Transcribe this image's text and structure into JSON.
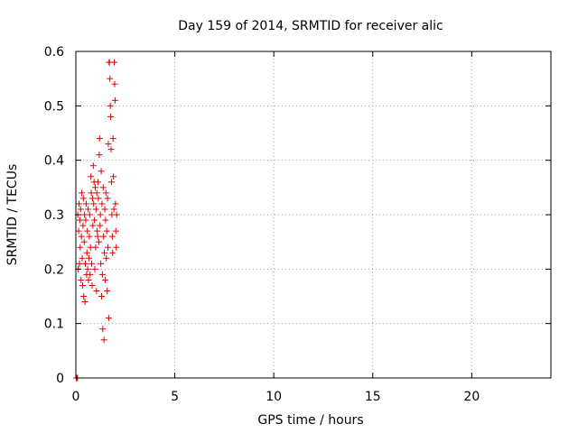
{
  "chart_data": {
    "type": "scatter",
    "title": "Day 159 of 2014, SRMTID for receiver alic",
    "xlabel": "GPS time / hours",
    "ylabel": "SRMTID / TECUs",
    "xlim": [
      0,
      24
    ],
    "ylim": [
      0,
      0.6
    ],
    "x_ticks": [
      0,
      5,
      10,
      15,
      20
    ],
    "y_ticks": [
      0,
      0.1,
      0.2,
      0.3,
      0.4,
      0.5,
      0.6
    ],
    "grid": true,
    "marker": "+",
    "marker_color": "#dd0000",
    "series": [
      {
        "points": [
          [
            0.02,
            0.0
          ],
          [
            0.05,
            0.0
          ],
          [
            0.08,
            0.0
          ],
          [
            0.1,
            0.3
          ],
          [
            0.12,
            0.2
          ],
          [
            0.14,
            0.27
          ],
          [
            0.16,
            0.32
          ],
          [
            0.18,
            0.21
          ],
          [
            0.2,
            0.29
          ],
          [
            0.22,
            0.24
          ],
          [
            0.24,
            0.31
          ],
          [
            0.26,
            0.18
          ],
          [
            0.28,
            0.26
          ],
          [
            0.3,
            0.34
          ],
          [
            0.32,
            0.22
          ],
          [
            0.34,
            0.17
          ],
          [
            0.36,
            0.28
          ],
          [
            0.38,
            0.33
          ],
          [
            0.4,
            0.15
          ],
          [
            0.42,
            0.25
          ],
          [
            0.44,
            0.3
          ],
          [
            0.46,
            0.14
          ],
          [
            0.48,
            0.21
          ],
          [
            0.5,
            0.29
          ],
          [
            0.52,
            0.32
          ],
          [
            0.54,
            0.19
          ],
          [
            0.56,
            0.23
          ],
          [
            0.58,
            0.27
          ],
          [
            0.6,
            0.2
          ],
          [
            0.62,
            0.31
          ],
          [
            0.64,
            0.18
          ],
          [
            0.66,
            0.22
          ],
          [
            0.68,
            0.26
          ],
          [
            0.7,
            0.3
          ],
          [
            0.72,
            0.19
          ],
          [
            0.74,
            0.24
          ],
          [
            0.76,
            0.37
          ],
          [
            0.78,
            0.34
          ],
          [
            0.8,
            0.21
          ],
          [
            0.82,
            0.17
          ],
          [
            0.84,
            0.33
          ],
          [
            0.86,
            0.28
          ],
          [
            0.88,
            0.39
          ],
          [
            0.9,
            0.32
          ],
          [
            0.92,
            0.36
          ],
          [
            0.94,
            0.29
          ],
          [
            0.96,
            0.2
          ],
          [
            0.98,
            0.35
          ],
          [
            1.0,
            0.24
          ],
          [
            1.02,
            0.31
          ],
          [
            1.04,
            0.16
          ],
          [
            1.06,
            0.34
          ],
          [
            1.08,
            0.27
          ],
          [
            1.1,
            0.26
          ],
          [
            1.12,
            0.36
          ],
          [
            1.14,
            0.33
          ],
          [
            1.16,
            0.25
          ],
          [
            1.18,
            0.41
          ],
          [
            1.2,
            0.44
          ],
          [
            1.22,
            0.28
          ],
          [
            1.24,
            0.3
          ],
          [
            1.26,
            0.21
          ],
          [
            1.28,
            0.38
          ],
          [
            1.3,
            0.15
          ],
          [
            1.32,
            0.32
          ],
          [
            1.34,
            0.19
          ],
          [
            1.36,
            0.09
          ],
          [
            1.38,
            0.35
          ],
          [
            1.4,
            0.26
          ],
          [
            1.42,
            0.07
          ],
          [
            1.44,
            0.23
          ],
          [
            1.46,
            0.31
          ],
          [
            1.48,
            0.18
          ],
          [
            1.5,
            0.29
          ],
          [
            1.52,
            0.34
          ],
          [
            1.54,
            0.22
          ],
          [
            1.56,
            0.27
          ],
          [
            1.58,
            0.16
          ],
          [
            1.6,
            0.33
          ],
          [
            1.62,
            0.24
          ],
          [
            1.64,
            0.43
          ],
          [
            1.66,
            0.11
          ],
          [
            1.68,
            0.58
          ],
          [
            1.7,
            0.58
          ],
          [
            1.72,
            0.55
          ],
          [
            1.74,
            0.5
          ],
          [
            1.76,
            0.48
          ],
          [
            1.78,
            0.42
          ],
          [
            1.8,
            0.36
          ],
          [
            1.82,
            0.3
          ],
          [
            1.84,
            0.26
          ],
          [
            1.86,
            0.23
          ],
          [
            1.88,
            0.44
          ],
          [
            1.9,
            0.37
          ],
          [
            1.92,
            0.31
          ],
          [
            1.94,
            0.58
          ],
          [
            1.96,
            0.54
          ],
          [
            1.98,
            0.51
          ],
          [
            2.0,
            0.32
          ],
          [
            2.02,
            0.27
          ],
          [
            2.04,
            0.24
          ],
          [
            2.06,
            0.3
          ]
        ]
      }
    ]
  }
}
